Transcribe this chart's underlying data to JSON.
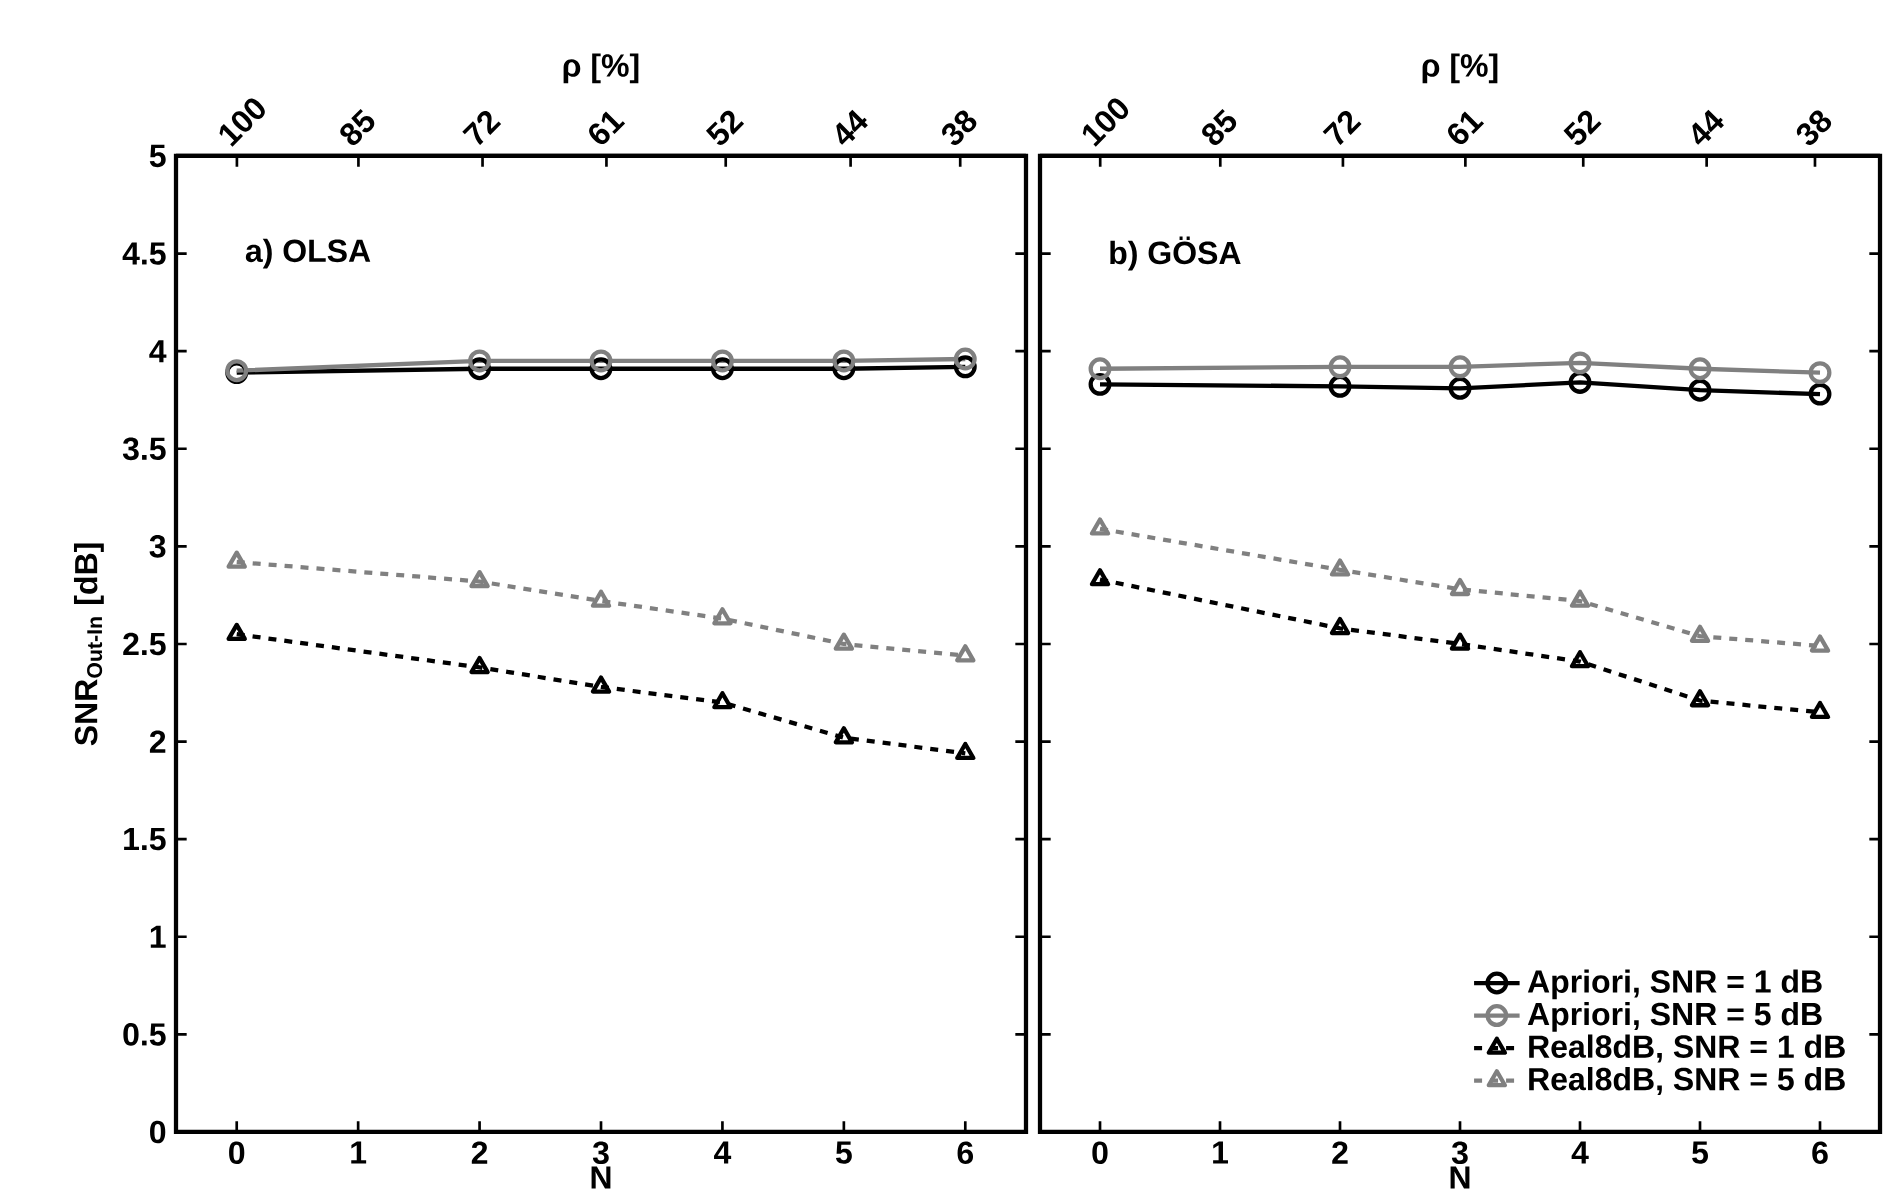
{
  "chart_data": [
    {
      "type": "line",
      "annotations": [
        "a) OLSA"
      ],
      "xlabel": "N",
      "ylabel": "SNR$_{Out-In}$ [dB]",
      "x2label": "ρ [%]",
      "xlim": [
        -0.5,
        6.5
      ],
      "xticks": [
        0,
        1,
        2,
        3,
        4,
        5,
        6
      ],
      "ylim": [
        0,
        5
      ],
      "yticks": [
        0,
        0.5,
        1,
        1.5,
        2,
        2.5,
        3,
        3.5,
        4,
        4.5,
        5
      ],
      "log": "x2",
      "x2lim": [
        108.5,
        34.8
      ],
      "x2ticks": [
        100,
        85,
        72,
        61,
        52,
        44,
        38
      ],
      "x": [
        0,
        2,
        3,
        4,
        5,
        6
      ],
      "series": [
        {
          "color": "#000000",
          "marker": "circle",
          "line_style": "solid",
          "values": [
            3.89,
            3.91,
            3.91,
            3.91,
            3.91,
            3.92
          ]
        },
        {
          "color": "#808080",
          "marker": "circle",
          "line_style": "solid",
          "values": [
            3.9,
            3.95,
            3.95,
            3.95,
            3.95,
            3.96
          ]
        },
        {
          "color": "#000000",
          "marker": "triangle",
          "line_style": "dashed",
          "values": [
            2.55,
            2.38,
            2.28,
            2.2,
            2.02,
            1.94
          ]
        },
        {
          "color": "#808080",
          "marker": "triangle",
          "line_style": "dashed",
          "values": [
            2.92,
            2.82,
            2.72,
            2.63,
            2.5,
            2.44
          ]
        }
      ]
    },
    {
      "type": "line",
      "annotations": [
        "b) GÖSA"
      ],
      "xlabel": "N",
      "x2label": "ρ [%]",
      "tick_labels": "x",
      "legend": "bottom right",
      "xlim": [
        -0.5,
        6.5
      ],
      "xticks": [
        0,
        1,
        2,
        3,
        4,
        5,
        6
      ],
      "ylim": [
        0,
        5
      ],
      "yticks": [
        0,
        0.5,
        1,
        1.5,
        2,
        2.5,
        3,
        3.5,
        4,
        4.5,
        5
      ],
      "log": "x2",
      "x2lim": [
        108.5,
        34.8
      ],
      "x2ticks": [
        100,
        85,
        72,
        61,
        52,
        44,
        38
      ],
      "x": [
        0,
        2,
        3,
        4,
        5,
        6
      ],
      "series": [
        {
          "name": "Apriori, SNR = 1 dB",
          "color": "#000000",
          "marker": "circle",
          "line_style": "solid",
          "values": [
            3.83,
            3.82,
            3.81,
            3.84,
            3.8,
            3.78
          ]
        },
        {
          "name": "Apriori, SNR = 5 dB",
          "color": "#808080",
          "marker": "circle",
          "line_style": "solid",
          "values": [
            3.91,
            3.92,
            3.92,
            3.94,
            3.91,
            3.89
          ]
        },
        {
          "name": "Real8dB, SNR = 1 dB",
          "color": "#000000",
          "marker": "triangle",
          "line_style": "dashed",
          "values": [
            2.83,
            2.58,
            2.5,
            2.41,
            2.21,
            2.15
          ]
        },
        {
          "name": "Real8dB, SNR = 5 dB",
          "color": "#808080",
          "marker": "triangle",
          "line_style": "dashed",
          "values": [
            3.09,
            2.88,
            2.78,
            2.72,
            2.54,
            2.49
          ]
        }
      ]
    }
  ]
}
